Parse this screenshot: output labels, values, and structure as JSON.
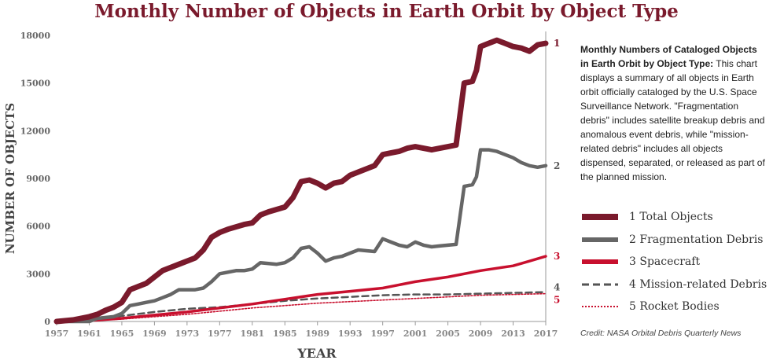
{
  "title": "Monthly Number of Objects in Earth Orbit by Object Type",
  "description": {
    "heading": "Monthly Numbers of Cataloged Objects in Earth Orbit by Object Type:",
    "body": " This chart displays a summary of all objects in Earth orbit officially cataloged by the U.S. Space Surveillance Network. \"Fragmentation debris\" includes satellite breakup debris and anomalous event debris, while \"mission-related debris\" includes all objects dispensed, separated, or released as part of the planned mission."
  },
  "legend": [
    {
      "label": "1 Total Objects",
      "color": "#7a1a2c",
      "style": "thick"
    },
    {
      "label": "2 Fragmentation Debris",
      "color": "#666666",
      "style": "thick"
    },
    {
      "label": "3 Spacecraft",
      "color": "#c8102e",
      "style": "thick"
    },
    {
      "label": "4 Mission-related Debris",
      "color": "#555555",
      "style": "dashed"
    },
    {
      "label": "5 Rocket Bodies",
      "color": "#c8102e",
      "style": "dotted"
    }
  ],
  "credit": "Credit: NASA Orbital Debris Quarterly News",
  "colors": {
    "title": "#7a1a2c",
    "total": "#7a1a2c",
    "fragmentation": "#666666",
    "spacecraft": "#c8102e",
    "mission": "#555555",
    "rocket": "#c8102e",
    "axis": "#999999"
  },
  "chart_data": {
    "type": "line",
    "title": "Monthly Number of Objects in Earth Orbit by Object Type",
    "xlabel": "YEAR",
    "ylabel": "NUMBER OF OBJECTS",
    "xlim": [
      1957,
      2017
    ],
    "ylim": [
      0,
      18000
    ],
    "xticks": [
      1957,
      1961,
      1965,
      1969,
      1973,
      1977,
      1981,
      1985,
      1989,
      1993,
      1997,
      2001,
      2005,
      2009,
      2013,
      2017
    ],
    "xtick_labels": [
      "1957",
      "1961",
      "1965",
      "1969",
      "1973",
      "1977",
      "1981",
      "1985",
      "1989",
      "1993",
      "1997",
      "2001",
      "2005",
      "2009",
      "2013",
      "2017"
    ],
    "yticks": [
      0,
      3000,
      6000,
      9000,
      12000,
      15000,
      18000
    ],
    "ytick_labels": [
      "0",
      "3000",
      "6000",
      "9000",
      "12000",
      "15000",
      "18000"
    ],
    "grid": false,
    "legend_position": "right",
    "series": [
      {
        "name": "Total Objects",
        "end_label": "1",
        "style": "thick",
        "x": [
          1957,
          1959,
          1961,
          1962,
          1963,
          1964,
          1965,
          1966,
          1967,
          1968,
          1969,
          1970,
          1971,
          1972,
          1974,
          1975,
          1976,
          1977,
          1978,
          1980,
          1981,
          1982,
          1983,
          1985,
          1986,
          1987,
          1988,
          1989,
          1990,
          1991,
          1992,
          1993,
          1994,
          1996,
          1997,
          1998,
          1999,
          2000,
          2001,
          2002,
          2003,
          2004,
          2005,
          2006,
          2007,
          2008,
          2008.5,
          2009,
          2010,
          2011,
          2012,
          2013,
          2014,
          2015,
          2016,
          2017
        ],
        "y": [
          0,
          100,
          300,
          450,
          700,
          900,
          1200,
          2000,
          2200,
          2400,
          2800,
          3200,
          3400,
          3600,
          4000,
          4500,
          5300,
          5600,
          5800,
          6100,
          6200,
          6700,
          6900,
          7200,
          7800,
          8800,
          8900,
          8700,
          8400,
          8700,
          8800,
          9200,
          9400,
          9800,
          10500,
          10600,
          10700,
          10900,
          11000,
          10900,
          10800,
          10900,
          11000,
          11100,
          15000,
          15100,
          15800,
          17300,
          17500,
          17700,
          17500,
          17300,
          17200,
          17000,
          17400,
          17500
        ]
      },
      {
        "name": "Fragmentation Debris",
        "end_label": "2",
        "style": "thick",
        "x": [
          1957,
          1961,
          1962,
          1964,
          1965,
          1966,
          1967,
          1968,
          1969,
          1970,
          1971,
          1972,
          1974,
          1975,
          1976,
          1977,
          1978,
          1979,
          1980,
          1981,
          1982,
          1984,
          1985,
          1986,
          1987,
          1988,
          1989,
          1990,
          1991,
          1992,
          1993,
          1994,
          1996,
          1997,
          1998,
          1999,
          2000,
          2001,
          2002,
          2003,
          2004,
          2005,
          2006,
          2007,
          2008,
          2008.5,
          2009,
          2010,
          2011,
          2012,
          2013,
          2014,
          2015,
          2016,
          2017
        ],
        "y": [
          0,
          0,
          200,
          300,
          500,
          1000,
          1100,
          1200,
          1300,
          1500,
          1700,
          2000,
          2000,
          2100,
          2500,
          3000,
          3100,
          3200,
          3200,
          3300,
          3700,
          3600,
          3700,
          4000,
          4600,
          4700,
          4300,
          3800,
          4000,
          4100,
          4300,
          4500,
          4400,
          5200,
          5000,
          4800,
          4700,
          5000,
          4800,
          4700,
          4750,
          4800,
          4850,
          8500,
          8600,
          9100,
          10800,
          10800,
          10700,
          10500,
          10300,
          10000,
          9800,
          9700,
          9800
        ]
      },
      {
        "name": "Spacecraft",
        "end_label": "3",
        "style": "thick",
        "x": [
          1957,
          1961,
          1965,
          1969,
          1973,
          1977,
          1981,
          1985,
          1989,
          1993,
          1997,
          2001,
          2005,
          2009,
          2013,
          2015,
          2017
        ],
        "y": [
          0,
          50,
          200,
          400,
          600,
          850,
          1100,
          1400,
          1700,
          1900,
          2100,
          2500,
          2800,
          3200,
          3500,
          3800,
          4100
        ]
      },
      {
        "name": "Mission-related Debris",
        "end_label": "4",
        "style": "dashed",
        "x": [
          1957,
          1961,
          1965,
          1969,
          1973,
          1977,
          1981,
          1985,
          1989,
          1993,
          1997,
          2001,
          2005,
          2009,
          2013,
          2017
        ],
        "y": [
          0,
          100,
          350,
          600,
          800,
          900,
          1100,
          1300,
          1450,
          1550,
          1650,
          1700,
          1700,
          1750,
          1800,
          1850
        ]
      },
      {
        "name": "Rocket Bodies",
        "end_label": "5",
        "style": "dotted",
        "x": [
          1957,
          1961,
          1965,
          1969,
          1973,
          1977,
          1981,
          1985,
          1989,
          1993,
          1997,
          2001,
          2005,
          2009,
          2013,
          2017
        ],
        "y": [
          0,
          50,
          150,
          300,
          450,
          650,
          850,
          1000,
          1150,
          1250,
          1350,
          1450,
          1550,
          1650,
          1700,
          1750
        ]
      }
    ]
  }
}
